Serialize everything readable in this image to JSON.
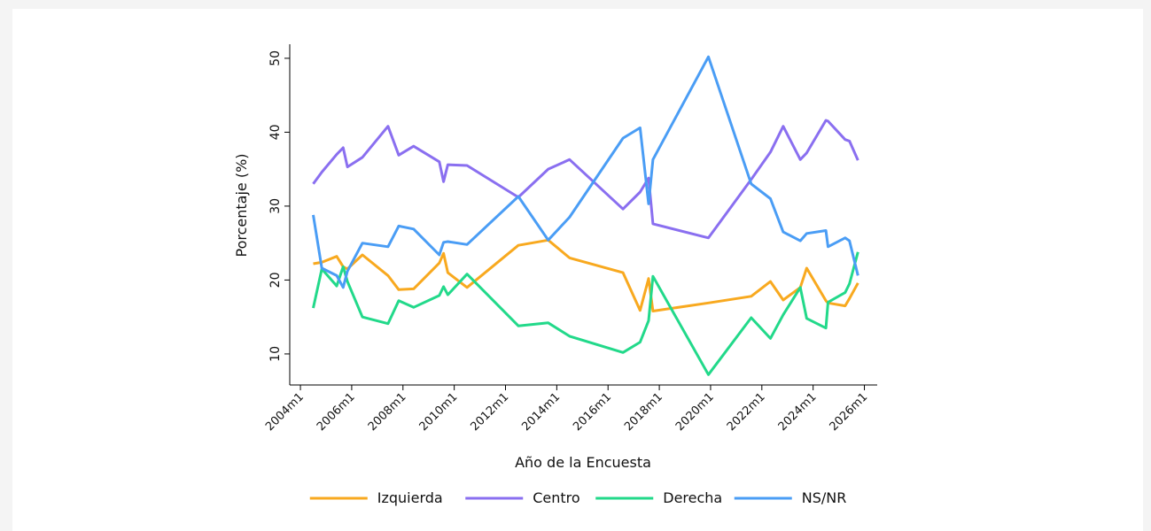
{
  "chart_data": {
    "type": "line",
    "xlabel": "Año de la Encuesta",
    "ylabel": "Porcentaje (%)",
    "x": [
      534,
      538,
      545,
      548,
      550,
      557,
      569,
      574,
      581,
      593,
      595,
      597,
      606,
      630,
      644,
      654,
      679,
      687,
      691,
      693,
      719,
      739,
      748,
      754,
      762,
      765,
      774,
      775,
      783,
      785,
      789
    ],
    "series": [
      {
        "name": "Izquierda",
        "color": "#f8a91f",
        "values": [
          22.2,
          22.4,
          23.2,
          21.8,
          21.5,
          23.4,
          20.6,
          18.7,
          18.8,
          22.3,
          23.6,
          21.0,
          19.0,
          24.7,
          25.4,
          23.0,
          21.0,
          15.9,
          20.2,
          15.8,
          16.9,
          17.8,
          19.8,
          17.3,
          19.0,
          21.6,
          17.2,
          16.9,
          16.5,
          17.5,
          19.6
        ]
      },
      {
        "name": "Centro",
        "color": "#8a6ff0",
        "values": [
          33.0,
          34.6,
          37.0,
          37.9,
          35.3,
          36.6,
          40.8,
          36.9,
          38.1,
          36.0,
          33.3,
          35.6,
          35.5,
          31.2,
          35.0,
          36.3,
          29.6,
          31.9,
          33.8,
          27.6,
          25.7,
          33.6,
          37.3,
          40.8,
          36.3,
          37.2,
          41.6,
          41.5,
          39.0,
          38.8,
          36.2
        ]
      },
      {
        "name": "Derecha",
        "color": "#22d98a",
        "values": [
          16.2,
          21.5,
          19.2,
          21.8,
          19.8,
          15.0,
          14.1,
          17.2,
          16.3,
          17.9,
          19.1,
          18.0,
          20.8,
          13.8,
          14.2,
          12.4,
          10.2,
          11.6,
          14.5,
          20.5,
          7.2,
          14.9,
          12.1,
          15.3,
          19.0,
          14.8,
          13.5,
          17.0,
          18.3,
          19.5,
          23.8
        ]
      },
      {
        "name": "NS/NR",
        "color": "#4a9df5",
        "values": [
          28.8,
          21.6,
          20.6,
          19.0,
          21.2,
          25.0,
          24.5,
          27.3,
          26.9,
          23.4,
          25.1,
          25.2,
          24.8,
          31.3,
          25.4,
          28.5,
          39.2,
          40.6,
          30.3,
          36.3,
          50.2,
          33.0,
          31.0,
          26.5,
          25.3,
          26.3,
          26.7,
          24.5,
          25.7,
          25.3,
          20.6
        ]
      }
    ],
    "xlim": [
      523,
      798
    ],
    "xticks": [
      {
        "value": 528,
        "label": "2004m1"
      },
      {
        "value": 552,
        "label": "2006m1"
      },
      {
        "value": 576,
        "label": "2008m1"
      },
      {
        "value": 600,
        "label": "2010m1"
      },
      {
        "value": 624,
        "label": "2012m1"
      },
      {
        "value": 648,
        "label": "2014m1"
      },
      {
        "value": 672,
        "label": "2016m1"
      },
      {
        "value": 696,
        "label": "2018m1"
      },
      {
        "value": 720,
        "label": "2020m1"
      },
      {
        "value": 744,
        "label": "2022m1"
      },
      {
        "value": 768,
        "label": "2024m1"
      },
      {
        "value": 792,
        "label": "2026m1"
      }
    ],
    "ylim": [
      5.8,
      51.9
    ],
    "yticks": [
      10,
      20,
      30,
      40,
      50
    ],
    "grid": false,
    "legend": "bottom"
  }
}
